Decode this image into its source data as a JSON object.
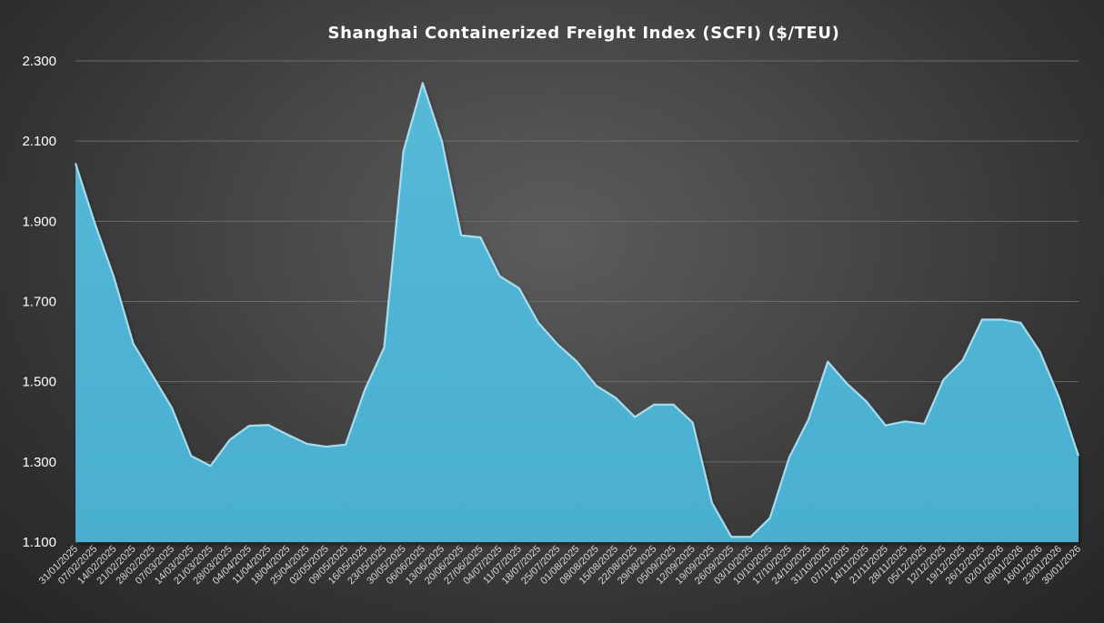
{
  "chart_data": {
    "type": "area",
    "title": "Shanghai Containerized Freight Index (SCFI) ($/TEU)",
    "xlabel": "",
    "ylabel": "",
    "ylim": [
      1100,
      2300
    ],
    "yticks": [
      1100,
      1300,
      1500,
      1700,
      1900,
      2100,
      2300
    ],
    "ytick_labels": [
      "1.100",
      "1.300",
      "1.500",
      "1.700",
      "1.900",
      "2.100",
      "2.300"
    ],
    "grid": true,
    "legend": "none",
    "x": [
      "31/01/2025",
      "07/02/2025",
      "14/02/2025",
      "21/02/2025",
      "28/02/2025",
      "07/03/2025",
      "14/03/2025",
      "21/03/2025",
      "28/03/2025",
      "04/04/2025",
      "11/04/2025",
      "18/04/2025",
      "25/04/2025",
      "02/05/2025",
      "09/05/2025",
      "16/05/2025",
      "23/05/2025",
      "30/05/2025",
      "06/06/2025",
      "13/06/2025",
      "20/06/2025",
      "27/06/2025",
      "04/07/2025",
      "11/07/2025",
      "18/07/2025",
      "25/07/2025",
      "01/08/2025",
      "08/08/2025",
      "15/08/2025",
      "22/08/2025",
      "29/08/2025",
      "05/09/2025",
      "12/09/2025",
      "19/09/2025",
      "26/09/2025",
      "03/10/2025",
      "10/10/2025",
      "17/10/2025",
      "24/10/2025",
      "31/10/2025",
      "07/11/2025",
      "14/11/2025",
      "21/11/2025",
      "28/11/2025",
      "05/12/2025",
      "12/12/2025",
      "19/12/2025",
      "26/12/2025",
      "02/01/2026",
      "09/01/2026",
      "16/01/2026",
      "23/01/2026",
      "30/01/2026"
    ],
    "series": [
      {
        "values": [
          2045,
          1896,
          1760,
          1595,
          1515,
          1435,
          1315,
          1290,
          1355,
          1390,
          1392,
          1368,
          1345,
          1338,
          1343,
          1480,
          1585,
          2075,
          2245,
          2100,
          1865,
          1860,
          1763,
          1733,
          1647,
          1593,
          1550,
          1490,
          1460,
          1412,
          1443,
          1443,
          1398,
          1198,
          1113,
          1113,
          1160,
          1311,
          1406,
          1550,
          1495,
          1451,
          1391,
          1401,
          1395,
          1505,
          1554,
          1655,
          1655,
          1647,
          1575,
          1460,
          1315
        ]
      }
    ],
    "colors": {
      "area_fill": "#4fb4d4",
      "area_edge": "#b9ecfb",
      "gridline": "#6a6a6a"
    }
  }
}
